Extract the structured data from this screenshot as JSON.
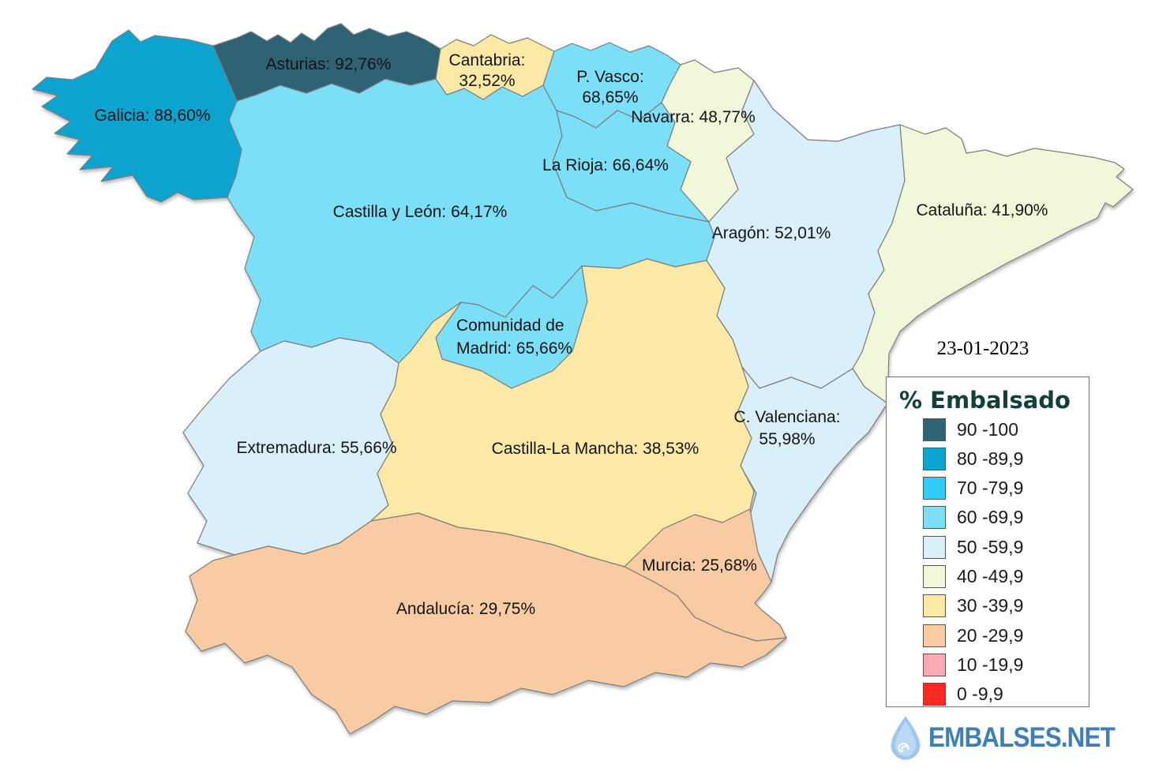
{
  "date": "23-01-2023",
  "legend": {
    "title": "% Embalsado",
    "items": [
      {
        "label": "90 -100",
        "color": "#2E6473"
      },
      {
        "label": "80 -89,9",
        "color": "#0FA3CF"
      },
      {
        "label": "70 -79,9",
        "color": "#31CCF5"
      },
      {
        "label": "60 -69,9",
        "color": "#7CDFF8"
      },
      {
        "label": "50 -59,9",
        "color": "#D9EFFA"
      },
      {
        "label": "40 -49,9",
        "color": "#F1F8D9"
      },
      {
        "label": "30 -39,9",
        "color": "#FCE9A6"
      },
      {
        "label": "20 -29,9",
        "color": "#F9CBA2"
      },
      {
        "label": "10 -19,9",
        "color": "#FBA9B2"
      },
      {
        "label": "0 -9,9",
        "color": "#FB2921"
      }
    ]
  },
  "regions": [
    {
      "id": "castillayleon",
      "name": "Castilla y León",
      "value": 64.17,
      "label_lines": [
        "Castilla y León: 64,17%"
      ],
      "color": "#7CDFF8"
    },
    {
      "id": "galicia",
      "name": "Galicia",
      "value": 88.6,
      "label_lines": [
        "Galicia: 88,60%"
      ],
      "color": "#0FA3CF"
    },
    {
      "id": "asturias",
      "name": "Asturias",
      "value": 92.76,
      "label_lines": [
        "Asturias: 92,76%"
      ],
      "color": "#2E6473"
    },
    {
      "id": "cantabria",
      "name": "Cantabria",
      "value": 32.52,
      "label_lines": [
        "Cantabria:",
        "32,52%"
      ],
      "color": "#FCE9A6"
    },
    {
      "id": "pvasco",
      "name": "P. Vasco",
      "value": 68.65,
      "label_lines": [
        "P. Vasco:",
        "68,65%"
      ],
      "color": "#7CDFF8"
    },
    {
      "id": "navarra",
      "name": "Navarra",
      "value": 48.77,
      "label_lines": [
        "Navarra: 48,77%"
      ],
      "color": "#F1F8D9"
    },
    {
      "id": "larioja",
      "name": "La Rioja",
      "value": 66.64,
      "label_lines": [
        "La Rioja: 66,64%"
      ],
      "color": "#7CDFF8"
    },
    {
      "id": "aragon",
      "name": "Aragón",
      "value": 52.01,
      "label_lines": [
        "Aragón: 52,01%"
      ],
      "color": "#D9EFFA"
    },
    {
      "id": "cataluna",
      "name": "Cataluña",
      "value": 41.9,
      "label_lines": [
        "Cataluña: 41,90%"
      ],
      "color": "#F1F8D9"
    },
    {
      "id": "madrid",
      "name": "Comunidad de Madrid",
      "value": 65.66,
      "label_lines": [
        "Comunidad de",
        "Madrid: 65,66%"
      ],
      "color": "#7CDFF8"
    },
    {
      "id": "valenciana",
      "name": "C. Valenciana",
      "value": 55.98,
      "label_lines": [
        "C. Valenciana:",
        "55,98%"
      ],
      "color": "#D9EFFA"
    },
    {
      "id": "extremadura",
      "name": "Extremadura",
      "value": 55.66,
      "label_lines": [
        "Extremadura: 55,66%"
      ],
      "color": "#D9EFFA"
    },
    {
      "id": "clm",
      "name": "Castilla-La Mancha",
      "value": 38.53,
      "label_lines": [
        "Castilla-La Mancha: 38,53%"
      ],
      "color": "#FCE9A6"
    },
    {
      "id": "murcia",
      "name": "Murcia",
      "value": 25.68,
      "label_lines": [
        "Murcia: 25,68%"
      ],
      "color": "#F9CBA2"
    },
    {
      "id": "andalucia",
      "name": "Andalucía",
      "value": 29.75,
      "label_lines": [
        "Andalucía: 29,75%"
      ],
      "color": "#F9CBA2"
    }
  ],
  "logo": {
    "text": "EMBALSES.NET"
  },
  "map": {
    "border_color": "#7d7d7d"
  }
}
